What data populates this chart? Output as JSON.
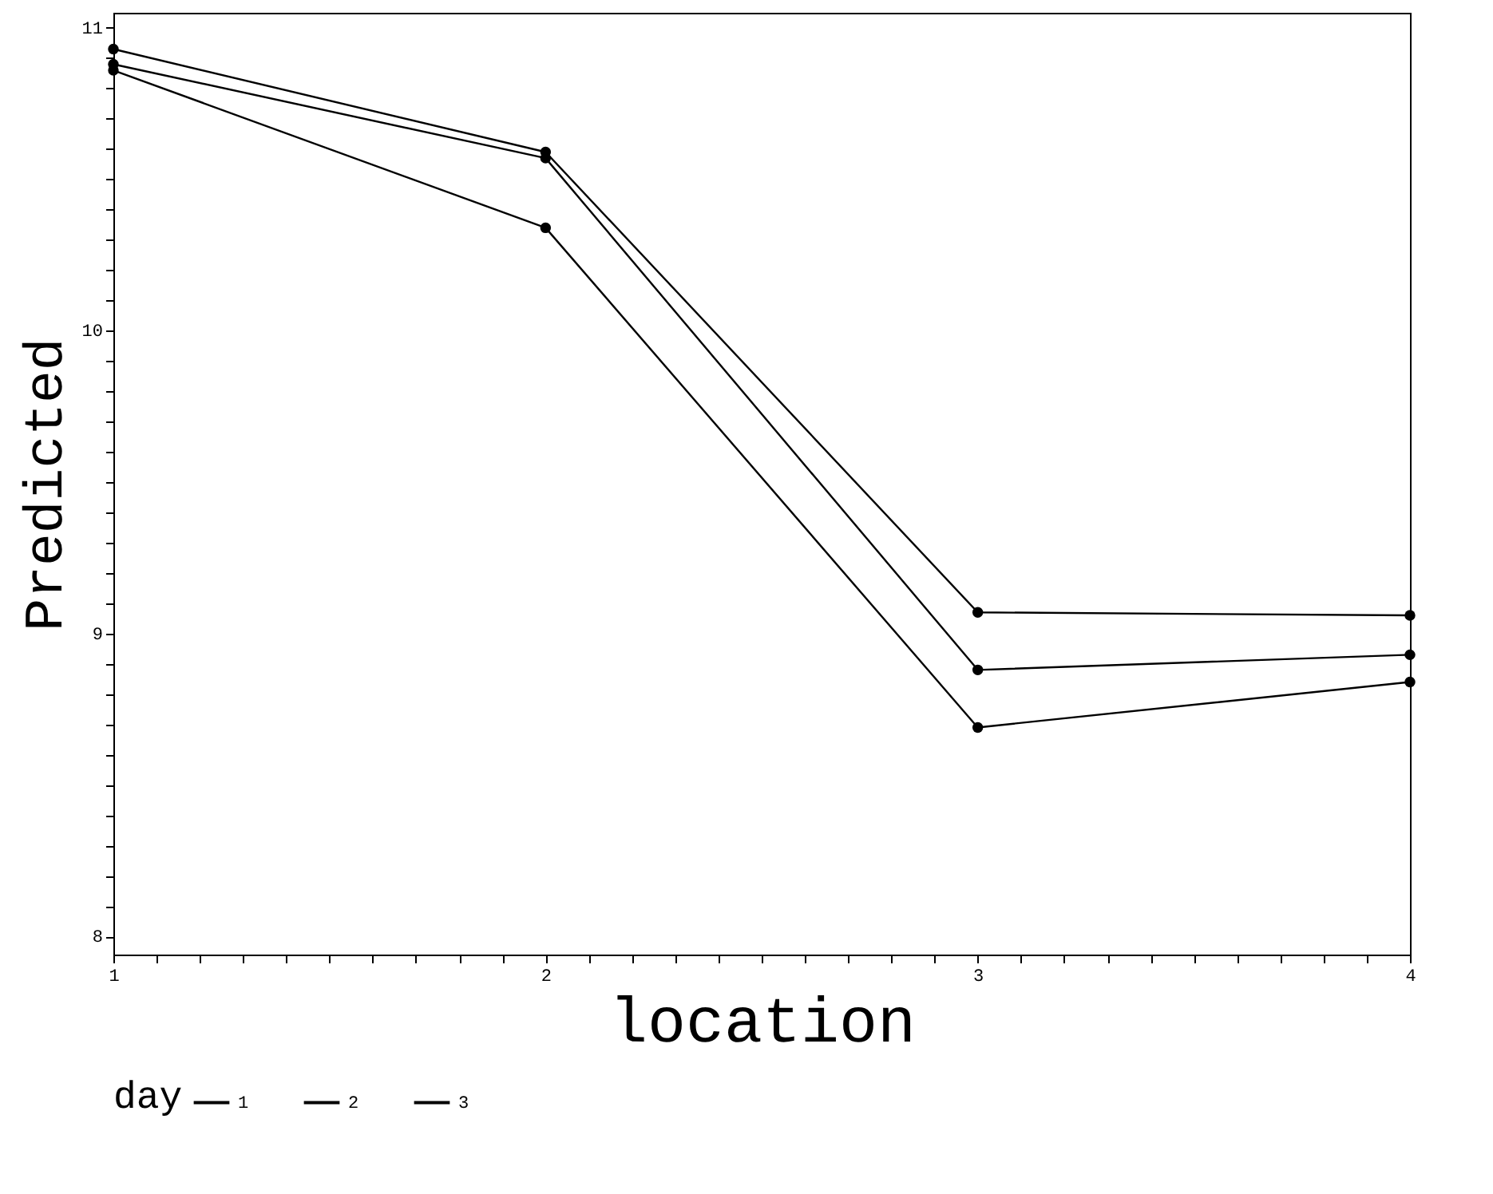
{
  "chart_data": {
    "type": "line",
    "xlabel": "location",
    "ylabel": "Predicted",
    "legend_title": "day",
    "x": [
      1,
      2,
      3,
      4
    ],
    "series": [
      {
        "name": "1",
        "color": "#000000",
        "values": [
          10.93,
          10.59,
          9.07,
          9.06
        ]
      },
      {
        "name": "2",
        "color": "#000000",
        "values": [
          10.88,
          10.57,
          8.88,
          8.93
        ]
      },
      {
        "name": "3",
        "color": "#000000",
        "values": [
          10.86,
          10.34,
          8.69,
          8.84
        ]
      }
    ],
    "xlim": [
      1,
      4
    ],
    "xticks": [
      1,
      {
        "value": 1.1,
        "label": null
      },
      {
        "value": 1.2,
        "label": null
      },
      {
        "value": 1.3,
        "label": null
      },
      {
        "value": 1.4,
        "label": null
      },
      {
        "value": 1.5,
        "label": null
      },
      {
        "value": 1.6,
        "label": null
      },
      {
        "value": 1.7,
        "label": null
      },
      {
        "value": 1.8,
        "label": null
      },
      {
        "value": 1.9,
        "label": null
      },
      2,
      {
        "value": 2.1,
        "label": null
      },
      {
        "value": 2.2,
        "label": null
      },
      {
        "value": 2.3,
        "label": null
      },
      {
        "value": 2.4,
        "label": null
      },
      {
        "value": 2.5,
        "label": null
      },
      {
        "value": 2.6,
        "label": null
      },
      {
        "value": 2.7,
        "label": null
      },
      {
        "value": 2.8,
        "label": null
      },
      {
        "value": 2.9,
        "label": null
      },
      3,
      {
        "value": 3.1,
        "label": null
      },
      {
        "value": 3.2,
        "label": null
      },
      {
        "value": 3.3,
        "label": null
      },
      {
        "value": 3.4,
        "label": null
      },
      {
        "value": 3.5,
        "label": null
      },
      {
        "value": 3.6,
        "label": null
      },
      {
        "value": 3.7,
        "label": null
      },
      {
        "value": 3.8,
        "label": null
      },
      {
        "value": 3.9,
        "label": null
      },
      4
    ],
    "ylim": [
      7.94,
      11.05
    ],
    "yticks": [
      8,
      {
        "value": 8.1,
        "label": null
      },
      {
        "value": 8.2,
        "label": null
      },
      {
        "value": 8.3,
        "label": null
      },
      {
        "value": 8.4,
        "label": null
      },
      {
        "value": 8.5,
        "label": null
      },
      {
        "value": 8.6,
        "label": null
      },
      {
        "value": 8.7,
        "label": null
      },
      {
        "value": 8.8,
        "label": null
      },
      {
        "value": 8.9,
        "label": null
      },
      9,
      {
        "value": 9.1,
        "label": null
      },
      {
        "value": 9.2,
        "label": null
      },
      {
        "value": 9.3,
        "label": null
      },
      {
        "value": 9.4,
        "label": null
      },
      {
        "value": 9.5,
        "label": null
      },
      {
        "value": 9.6,
        "label": null
      },
      {
        "value": 9.7,
        "label": null
      },
      {
        "value": 9.8,
        "label": null
      },
      {
        "value": 9.9,
        "label": null
      },
      10,
      {
        "value": 10.1,
        "label": null
      },
      {
        "value": 10.2,
        "label": null
      },
      {
        "value": 10.3,
        "label": null
      },
      {
        "value": 10.4,
        "label": null
      },
      {
        "value": 10.5,
        "label": null
      },
      {
        "value": 10.6,
        "label": null
      },
      {
        "value": 10.7,
        "label": null
      },
      {
        "value": 10.8,
        "label": null
      },
      {
        "value": 10.9,
        "label": null
      },
      11
    ],
    "grid": false,
    "legend": "bottom",
    "marker": "circle",
    "line_style": "solid"
  }
}
